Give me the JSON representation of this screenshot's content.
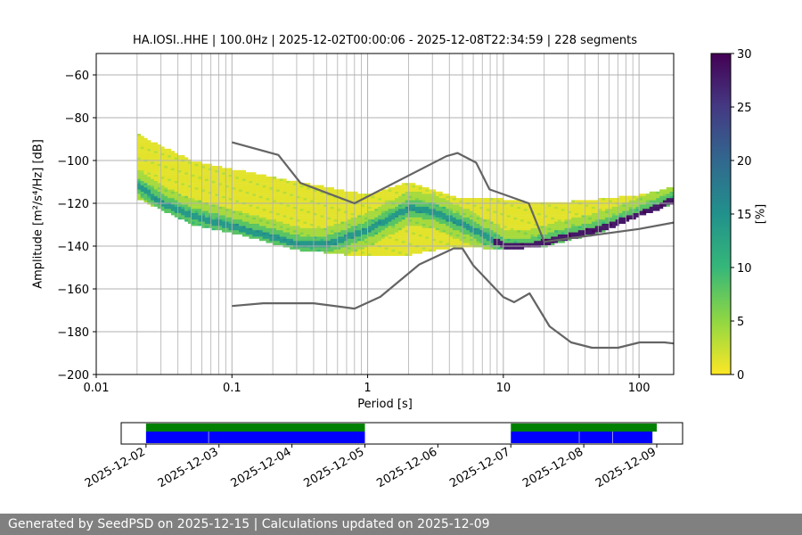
{
  "footer": {
    "text": "Generated by SeedPSD on 2025-12-15 | Calculations updated on 2025-12-09"
  },
  "chart_data": [
    {
      "type": "heatmap",
      "title": "HA.IOSI..HHE | 100.0Hz | 2025-12-02T00:00:06 - 2025-12-08T22:34:59 | 228 segments",
      "xlabel": "Period [s]",
      "ylabel": "Amplitude [m²/s⁴/Hz] [dB]",
      "x_scale": "log",
      "xlim": [
        0.01,
        180
      ],
      "ylim": [
        -200,
        -50
      ],
      "x_ticks": [
        "0.01",
        "0.1",
        "1",
        "10",
        "100"
      ],
      "y_ticks": [
        -60,
        -80,
        -100,
        -120,
        -140,
        -160,
        -180,
        -200
      ],
      "grid": true,
      "colorbar": {
        "label": "[%]",
        "range": [
          0,
          30
        ],
        "ticks": [
          0,
          5,
          10,
          15,
          20,
          25,
          30
        ],
        "colormap": "viridis_r"
      },
      "psd_mode": {
        "period": [
          0.02,
          0.03,
          0.05,
          0.1,
          0.2,
          0.3,
          0.5,
          1,
          2,
          3,
          5,
          10,
          15,
          20,
          50,
          100,
          180
        ],
        "db": [
          -112,
          -120,
          -126,
          -131,
          -136,
          -139,
          -139,
          -132,
          -122,
          -124,
          -130,
          -140,
          -140,
          -138,
          -132,
          -125,
          -118
        ]
      },
      "psd_spread": {
        "period": [
          0.02,
          0.05,
          0.1,
          0.3,
          1,
          2,
          3,
          5,
          10,
          20,
          50,
          100,
          180
        ],
        "upper_db": [
          -88,
          -100,
          -104,
          -110,
          -116,
          -110,
          -114,
          -118,
          -118,
          -120,
          -118,
          -116,
          -112
        ],
        "lower_db": [
          -118,
          -130,
          -134,
          -142,
          -145,
          -144,
          -142,
          -140,
          -142,
          -140,
          -134,
          -126,
          -120
        ]
      },
      "noise_models": [
        {
          "name": "NHNM",
          "period": [
            0.1,
            0.22,
            0.32,
            0.8,
            3.8,
            4.6,
            6.3,
            7.9,
            15.4,
            20
          ],
          "db": [
            -91.5,
            -97.4,
            -110.5,
            -120,
            -98,
            -96.5,
            -101,
            -113.5,
            -120,
            -138
          ]
        },
        {
          "name": "NHNM-long",
          "period": [
            20,
            100,
            180
          ],
          "db": [
            -138,
            -132,
            -129
          ]
        },
        {
          "name": "NLNM",
          "period": [
            0.1,
            0.17,
            0.4,
            0.8,
            1.24,
            2.4,
            4.3,
            5,
            6,
            10,
            12,
            15.6,
            21.9,
            31.6,
            45,
            70,
            101,
            154,
            180
          ],
          "db": [
            -168,
            -166.7,
            -166.7,
            -169.2,
            -163.7,
            -148.6,
            -141.1,
            -141.1,
            -149,
            -163.8,
            -166.2,
            -162.1,
            -177.5,
            -185,
            -187.5,
            -187.5,
            -185,
            -185,
            -185.5
          ]
        }
      ]
    },
    {
      "type": "timeline",
      "x_ticks": [
        "2025-12-02",
        "2025-12-03",
        "2025-12-04",
        "2025-12-05",
        "2025-12-06",
        "2025-12-07",
        "2025-12-08",
        "2025-12-09"
      ],
      "xlim": [
        "2025-12-01T15:50",
        "2025-12-09T08:30"
      ],
      "data_available": [
        {
          "start": "2025-12-02T00:00",
          "end": "2025-12-05T00:00"
        },
        {
          "start": "2025-12-07T00:00",
          "end": "2025-12-09T00:00"
        }
      ],
      "segments_used": [
        {
          "start": "2025-12-02T00:00",
          "end": "2025-12-02T20:30"
        },
        {
          "start": "2025-12-02T20:40",
          "end": "2025-12-05T00:00"
        },
        {
          "start": "2025-12-07T00:00",
          "end": "2025-12-07T22:25"
        },
        {
          "start": "2025-12-07T22:35",
          "end": "2025-12-08T09:25"
        },
        {
          "start": "2025-12-08T09:35",
          "end": "2025-12-08T22:35"
        }
      ],
      "colors": {
        "available": "#008000",
        "used": "#0000ff"
      }
    }
  ]
}
